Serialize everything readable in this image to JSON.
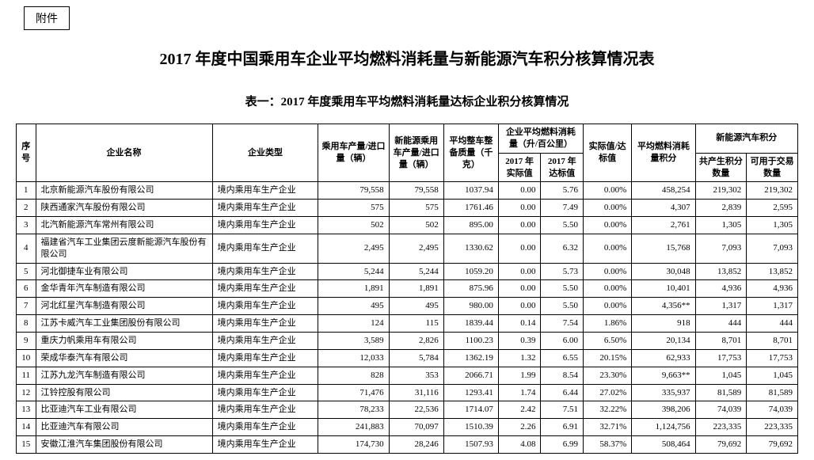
{
  "attachment_label": "附件",
  "main_title": "2017 年度中国乘用车企业平均燃料消耗量与新能源汽车积分核算情况表",
  "sub_title": "表一：2017 年度乘用车平均燃料消耗量达标企业积分核算情况",
  "headers": {
    "idx": "序号",
    "company": "企业名称",
    "type": "企业类型",
    "prod": "乘用车产量/进口量（辆）",
    "nev_prod": "新能源乘用车产量/进口量（辆）",
    "weight": "平均整车整备质量（千克）",
    "fuel_group": "企业平均燃料消耗量（升/百公里）",
    "actual": "2017 年实际值",
    "target": "2017 年达标值",
    "ratio": "实际值/达标值",
    "fuel_pts": "平均燃料消耗量积分",
    "nev_group": "新能源汽车积分",
    "tot_prod": "共产生积分数量",
    "trade": "可用于交易数量"
  },
  "type_label": "境内乘用车生产企业",
  "rows": [
    {
      "idx": "1",
      "name": "北京新能源汽车股份有限公司",
      "prod": "79,558",
      "nev": "79,558",
      "weight": "1037.94",
      "actual": "0.00",
      "target": "5.76",
      "ratio": "0.00%",
      "fuel": "458,254",
      "totprod": "219,302",
      "trade": "219,302"
    },
    {
      "idx": "2",
      "name": "陕西通家汽车股份有限公司",
      "prod": "575",
      "nev": "575",
      "weight": "1761.46",
      "actual": "0.00",
      "target": "7.49",
      "ratio": "0.00%",
      "fuel": "4,307",
      "totprod": "2,839",
      "trade": "2,595"
    },
    {
      "idx": "3",
      "name": "北汽新能源汽车常州有限公司",
      "prod": "502",
      "nev": "502",
      "weight": "895.00",
      "actual": "0.00",
      "target": "5.50",
      "ratio": "0.00%",
      "fuel": "2,761",
      "totprod": "1,305",
      "trade": "1,305"
    },
    {
      "idx": "4",
      "name": "福建省汽车工业集团云度新能源汽车股份有限公司",
      "prod": "2,495",
      "nev": "2,495",
      "weight": "1330.62",
      "actual": "0.00",
      "target": "6.32",
      "ratio": "0.00%",
      "fuel": "15,768",
      "totprod": "7,093",
      "trade": "7,093"
    },
    {
      "idx": "5",
      "name": "河北御捷车业有限公司",
      "prod": "5,244",
      "nev": "5,244",
      "weight": "1059.20",
      "actual": "0.00",
      "target": "5.73",
      "ratio": "0.00%",
      "fuel": "30,048",
      "totprod": "13,852",
      "trade": "13,852"
    },
    {
      "idx": "6",
      "name": "金华青年汽车制造有限公司",
      "prod": "1,891",
      "nev": "1,891",
      "weight": "875.96",
      "actual": "0.00",
      "target": "5.50",
      "ratio": "0.00%",
      "fuel": "10,401",
      "totprod": "4,936",
      "trade": "4,936"
    },
    {
      "idx": "7",
      "name": "河北红星汽车制造有限公司",
      "prod": "495",
      "nev": "495",
      "weight": "980.00",
      "actual": "0.00",
      "target": "5.50",
      "ratio": "0.00%",
      "fuel": "4,356**",
      "totprod": "1,317",
      "trade": "1,317"
    },
    {
      "idx": "8",
      "name": "江苏卡威汽车工业集团股份有限公司",
      "prod": "124",
      "nev": "115",
      "weight": "1839.44",
      "actual": "0.14",
      "target": "7.54",
      "ratio": "1.86%",
      "fuel": "918",
      "totprod": "444",
      "trade": "444"
    },
    {
      "idx": "9",
      "name": "重庆力帆乘用车有限公司",
      "prod": "3,589",
      "nev": "2,826",
      "weight": "1100.23",
      "actual": "0.39",
      "target": "6.00",
      "ratio": "6.50%",
      "fuel": "20,134",
      "totprod": "8,701",
      "trade": "8,701"
    },
    {
      "idx": "10",
      "name": "荣成华泰汽车有限公司",
      "prod": "12,033",
      "nev": "5,784",
      "weight": "1362.19",
      "actual": "1.32",
      "target": "6.55",
      "ratio": "20.15%",
      "fuel": "62,933",
      "totprod": "17,753",
      "trade": "17,753"
    },
    {
      "idx": "11",
      "name": "江苏九龙汽车制造有限公司",
      "prod": "828",
      "nev": "353",
      "weight": "2066.71",
      "actual": "1.99",
      "target": "8.54",
      "ratio": "23.30%",
      "fuel": "9,663**",
      "totprod": "1,045",
      "trade": "1,045"
    },
    {
      "idx": "12",
      "name": "江铃控股有限公司",
      "prod": "71,476",
      "nev": "31,116",
      "weight": "1293.41",
      "actual": "1.74",
      "target": "6.44",
      "ratio": "27.02%",
      "fuel": "335,937",
      "totprod": "81,589",
      "trade": "81,589"
    },
    {
      "idx": "13",
      "name": "比亚迪汽车工业有限公司",
      "prod": "78,233",
      "nev": "22,536",
      "weight": "1714.07",
      "actual": "2.42",
      "target": "7.51",
      "ratio": "32.22%",
      "fuel": "398,206",
      "totprod": "74,039",
      "trade": "74,039"
    },
    {
      "idx": "14",
      "name": "比亚迪汽车有限公司",
      "prod": "241,883",
      "nev": "70,097",
      "weight": "1510.39",
      "actual": "2.26",
      "target": "6.91",
      "ratio": "32.71%",
      "fuel": "1,124,756",
      "totprod": "223,335",
      "trade": "223,335"
    },
    {
      "idx": "15",
      "name": "安徽江淮汽车集团股份有限公司",
      "prod": "174,730",
      "nev": "28,246",
      "weight": "1507.93",
      "actual": "4.08",
      "target": "6.99",
      "ratio": "58.37%",
      "fuel": "508,464",
      "totprod": "79,692",
      "trade": "79,692"
    }
  ]
}
